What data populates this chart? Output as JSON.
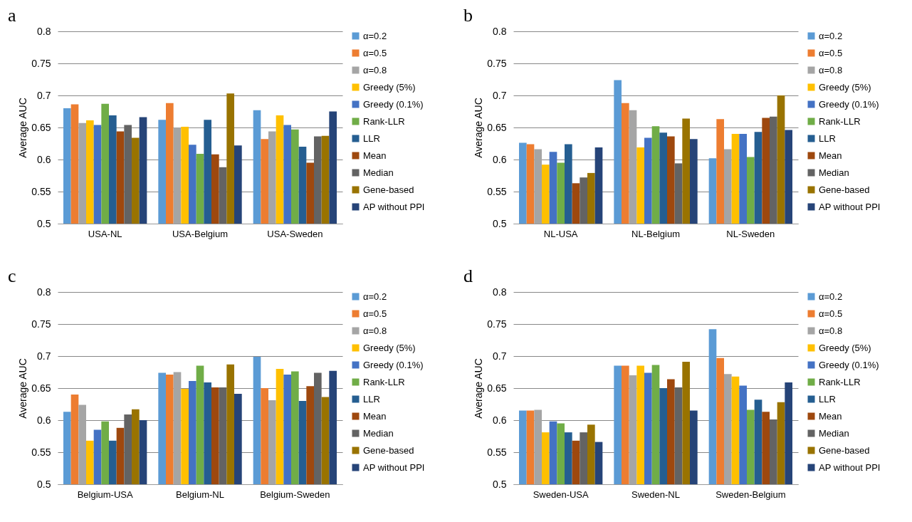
{
  "chart_data": [
    {
      "type": "bar",
      "title": "a",
      "ylabel": "Average AUC",
      "categories": [
        "USA-NL",
        "USA-Belgium",
        "USA-Sweden"
      ],
      "ylim": [
        0.5,
        0.8
      ],
      "yticks": [
        0.5,
        0.55,
        0.6,
        0.65,
        0.7,
        0.75,
        0.8
      ],
      "grid": "y",
      "legend": "right",
      "series": [
        {
          "name": "α=0.2",
          "color": "#5b9bd5",
          "values": [
            0.68,
            0.662,
            0.677
          ]
        },
        {
          "name": "α=0.5",
          "color": "#ed7d31",
          "values": [
            0.686,
            0.688,
            0.632
          ]
        },
        {
          "name": "α=0.8",
          "color": "#a5a5a5",
          "values": [
            0.657,
            0.65,
            0.644
          ]
        },
        {
          "name": "Greedy (5%)",
          "color": "#ffc000",
          "values": [
            0.661,
            0.651,
            0.669
          ]
        },
        {
          "name": "Greedy (0.1%)",
          "color": "#4472c4",
          "values": [
            0.654,
            0.623,
            0.654
          ]
        },
        {
          "name": "Rank-LLR",
          "color": "#70ad47",
          "values": [
            0.687,
            0.609,
            0.647
          ]
        },
        {
          "name": "LLR",
          "color": "#255e91",
          "values": [
            0.669,
            0.662,
            0.62
          ]
        },
        {
          "name": "Mean",
          "color": "#9e480e",
          "values": [
            0.644,
            0.608,
            0.595
          ]
        },
        {
          "name": "Median",
          "color": "#636363",
          "values": [
            0.654,
            0.588,
            0.636
          ]
        },
        {
          "name": "Gene-based",
          "color": "#997300",
          "values": [
            0.634,
            0.703,
            0.637
          ]
        },
        {
          "name": "AP without PPI",
          "color": "#264478",
          "values": [
            0.666,
            0.622,
            0.675
          ]
        }
      ]
    },
    {
      "type": "bar",
      "title": "b",
      "ylabel": "Average AUC",
      "categories": [
        "NL-USA",
        "NL-Belgium",
        "NL-Sweden"
      ],
      "ylim": [
        0.5,
        0.8
      ],
      "yticks": [
        0.5,
        0.55,
        0.6,
        0.65,
        0.7,
        0.75,
        0.8
      ],
      "grid": "y",
      "legend": "right",
      "series": [
        {
          "name": "α=0.2",
          "color": "#5b9bd5",
          "values": [
            0.626,
            0.724,
            0.602
          ]
        },
        {
          "name": "α=0.5",
          "color": "#ed7d31",
          "values": [
            0.624,
            0.688,
            0.663
          ]
        },
        {
          "name": "α=0.8",
          "color": "#a5a5a5",
          "values": [
            0.616,
            0.677,
            0.616
          ]
        },
        {
          "name": "Greedy (5%)",
          "color": "#ffc000",
          "values": [
            0.592,
            0.619,
            0.64
          ]
        },
        {
          "name": "Greedy (0.1%)",
          "color": "#4472c4",
          "values": [
            0.612,
            0.634,
            0.64
          ]
        },
        {
          "name": "Rank-LLR",
          "color": "#70ad47",
          "values": [
            0.595,
            0.652,
            0.604
          ]
        },
        {
          "name": "LLR",
          "color": "#255e91",
          "values": [
            0.624,
            0.642,
            0.643
          ]
        },
        {
          "name": "Mean",
          "color": "#9e480e",
          "values": [
            0.563,
            0.636,
            0.665
          ]
        },
        {
          "name": "Median",
          "color": "#636363",
          "values": [
            0.572,
            0.594,
            0.667
          ]
        },
        {
          "name": "Gene-based",
          "color": "#997300",
          "values": [
            0.579,
            0.664,
            0.7
          ]
        },
        {
          "name": "AP without PPI",
          "color": "#264478",
          "values": [
            0.619,
            0.632,
            0.646
          ]
        }
      ]
    },
    {
      "type": "bar",
      "title": "c",
      "ylabel": "Average AUC",
      "categories": [
        "Belgium-USA",
        "Belgium-NL",
        "Belgium-Sweden"
      ],
      "ylim": [
        0.5,
        0.8
      ],
      "yticks": [
        0.5,
        0.55,
        0.6,
        0.65,
        0.7,
        0.75,
        0.8
      ],
      "grid": "y",
      "legend": "right",
      "series": [
        {
          "name": "α=0.2",
          "color": "#5b9bd5",
          "values": [
            0.613,
            0.674,
            0.699
          ]
        },
        {
          "name": "α=0.5",
          "color": "#ed7d31",
          "values": [
            0.64,
            0.671,
            0.65
          ]
        },
        {
          "name": "α=0.8",
          "color": "#a5a5a5",
          "values": [
            0.624,
            0.675,
            0.631
          ]
        },
        {
          "name": "Greedy (5%)",
          "color": "#ffc000",
          "values": [
            0.568,
            0.649,
            0.68
          ]
        },
        {
          "name": "Greedy (0.1%)",
          "color": "#4472c4",
          "values": [
            0.585,
            0.661,
            0.671
          ]
        },
        {
          "name": "Rank-LLR",
          "color": "#70ad47",
          "values": [
            0.598,
            0.685,
            0.676
          ]
        },
        {
          "name": "LLR",
          "color": "#255e91",
          "values": [
            0.568,
            0.659,
            0.63
          ]
        },
        {
          "name": "Mean",
          "color": "#9e480e",
          "values": [
            0.588,
            0.651,
            0.653
          ]
        },
        {
          "name": "Median",
          "color": "#636363",
          "values": [
            0.609,
            0.651,
            0.674
          ]
        },
        {
          "name": "Gene-based",
          "color": "#997300",
          "values": [
            0.617,
            0.687,
            0.636
          ]
        },
        {
          "name": "AP without PPI",
          "color": "#264478",
          "values": [
            0.6,
            0.641,
            0.677
          ]
        }
      ]
    },
    {
      "type": "bar",
      "title": "d",
      "ylabel": "Average AUC",
      "categories": [
        "Sweden-USA",
        "Sweden-NL",
        "Sweden-Belgium"
      ],
      "ylim": [
        0.5,
        0.8
      ],
      "yticks": [
        0.5,
        0.55,
        0.6,
        0.65,
        0.7,
        0.75,
        0.8
      ],
      "grid": "y",
      "legend": "right",
      "series": [
        {
          "name": "α=0.2",
          "color": "#5b9bd5",
          "values": [
            0.615,
            0.685,
            0.742
          ]
        },
        {
          "name": "α=0.5",
          "color": "#ed7d31",
          "values": [
            0.615,
            0.685,
            0.697
          ]
        },
        {
          "name": "α=0.8",
          "color": "#a5a5a5",
          "values": [
            0.616,
            0.67,
            0.672
          ]
        },
        {
          "name": "Greedy (5%)",
          "color": "#ffc000",
          "values": [
            0.581,
            0.685,
            0.668
          ]
        },
        {
          "name": "Greedy (0.1%)",
          "color": "#4472c4",
          "values": [
            0.598,
            0.674,
            0.654
          ]
        },
        {
          "name": "Rank-LLR",
          "color": "#70ad47",
          "values": [
            0.595,
            0.686,
            0.616
          ]
        },
        {
          "name": "LLR",
          "color": "#255e91",
          "values": [
            0.581,
            0.65,
            0.632
          ]
        },
        {
          "name": "Mean",
          "color": "#9e480e",
          "values": [
            0.568,
            0.664,
            0.613
          ]
        },
        {
          "name": "Median",
          "color": "#636363",
          "values": [
            0.581,
            0.651,
            0.601
          ]
        },
        {
          "name": "Gene-based",
          "color": "#997300",
          "values": [
            0.593,
            0.691,
            0.628
          ]
        },
        {
          "name": "AP without PPI",
          "color": "#264478",
          "values": [
            0.566,
            0.615,
            0.659
          ]
        }
      ]
    }
  ]
}
